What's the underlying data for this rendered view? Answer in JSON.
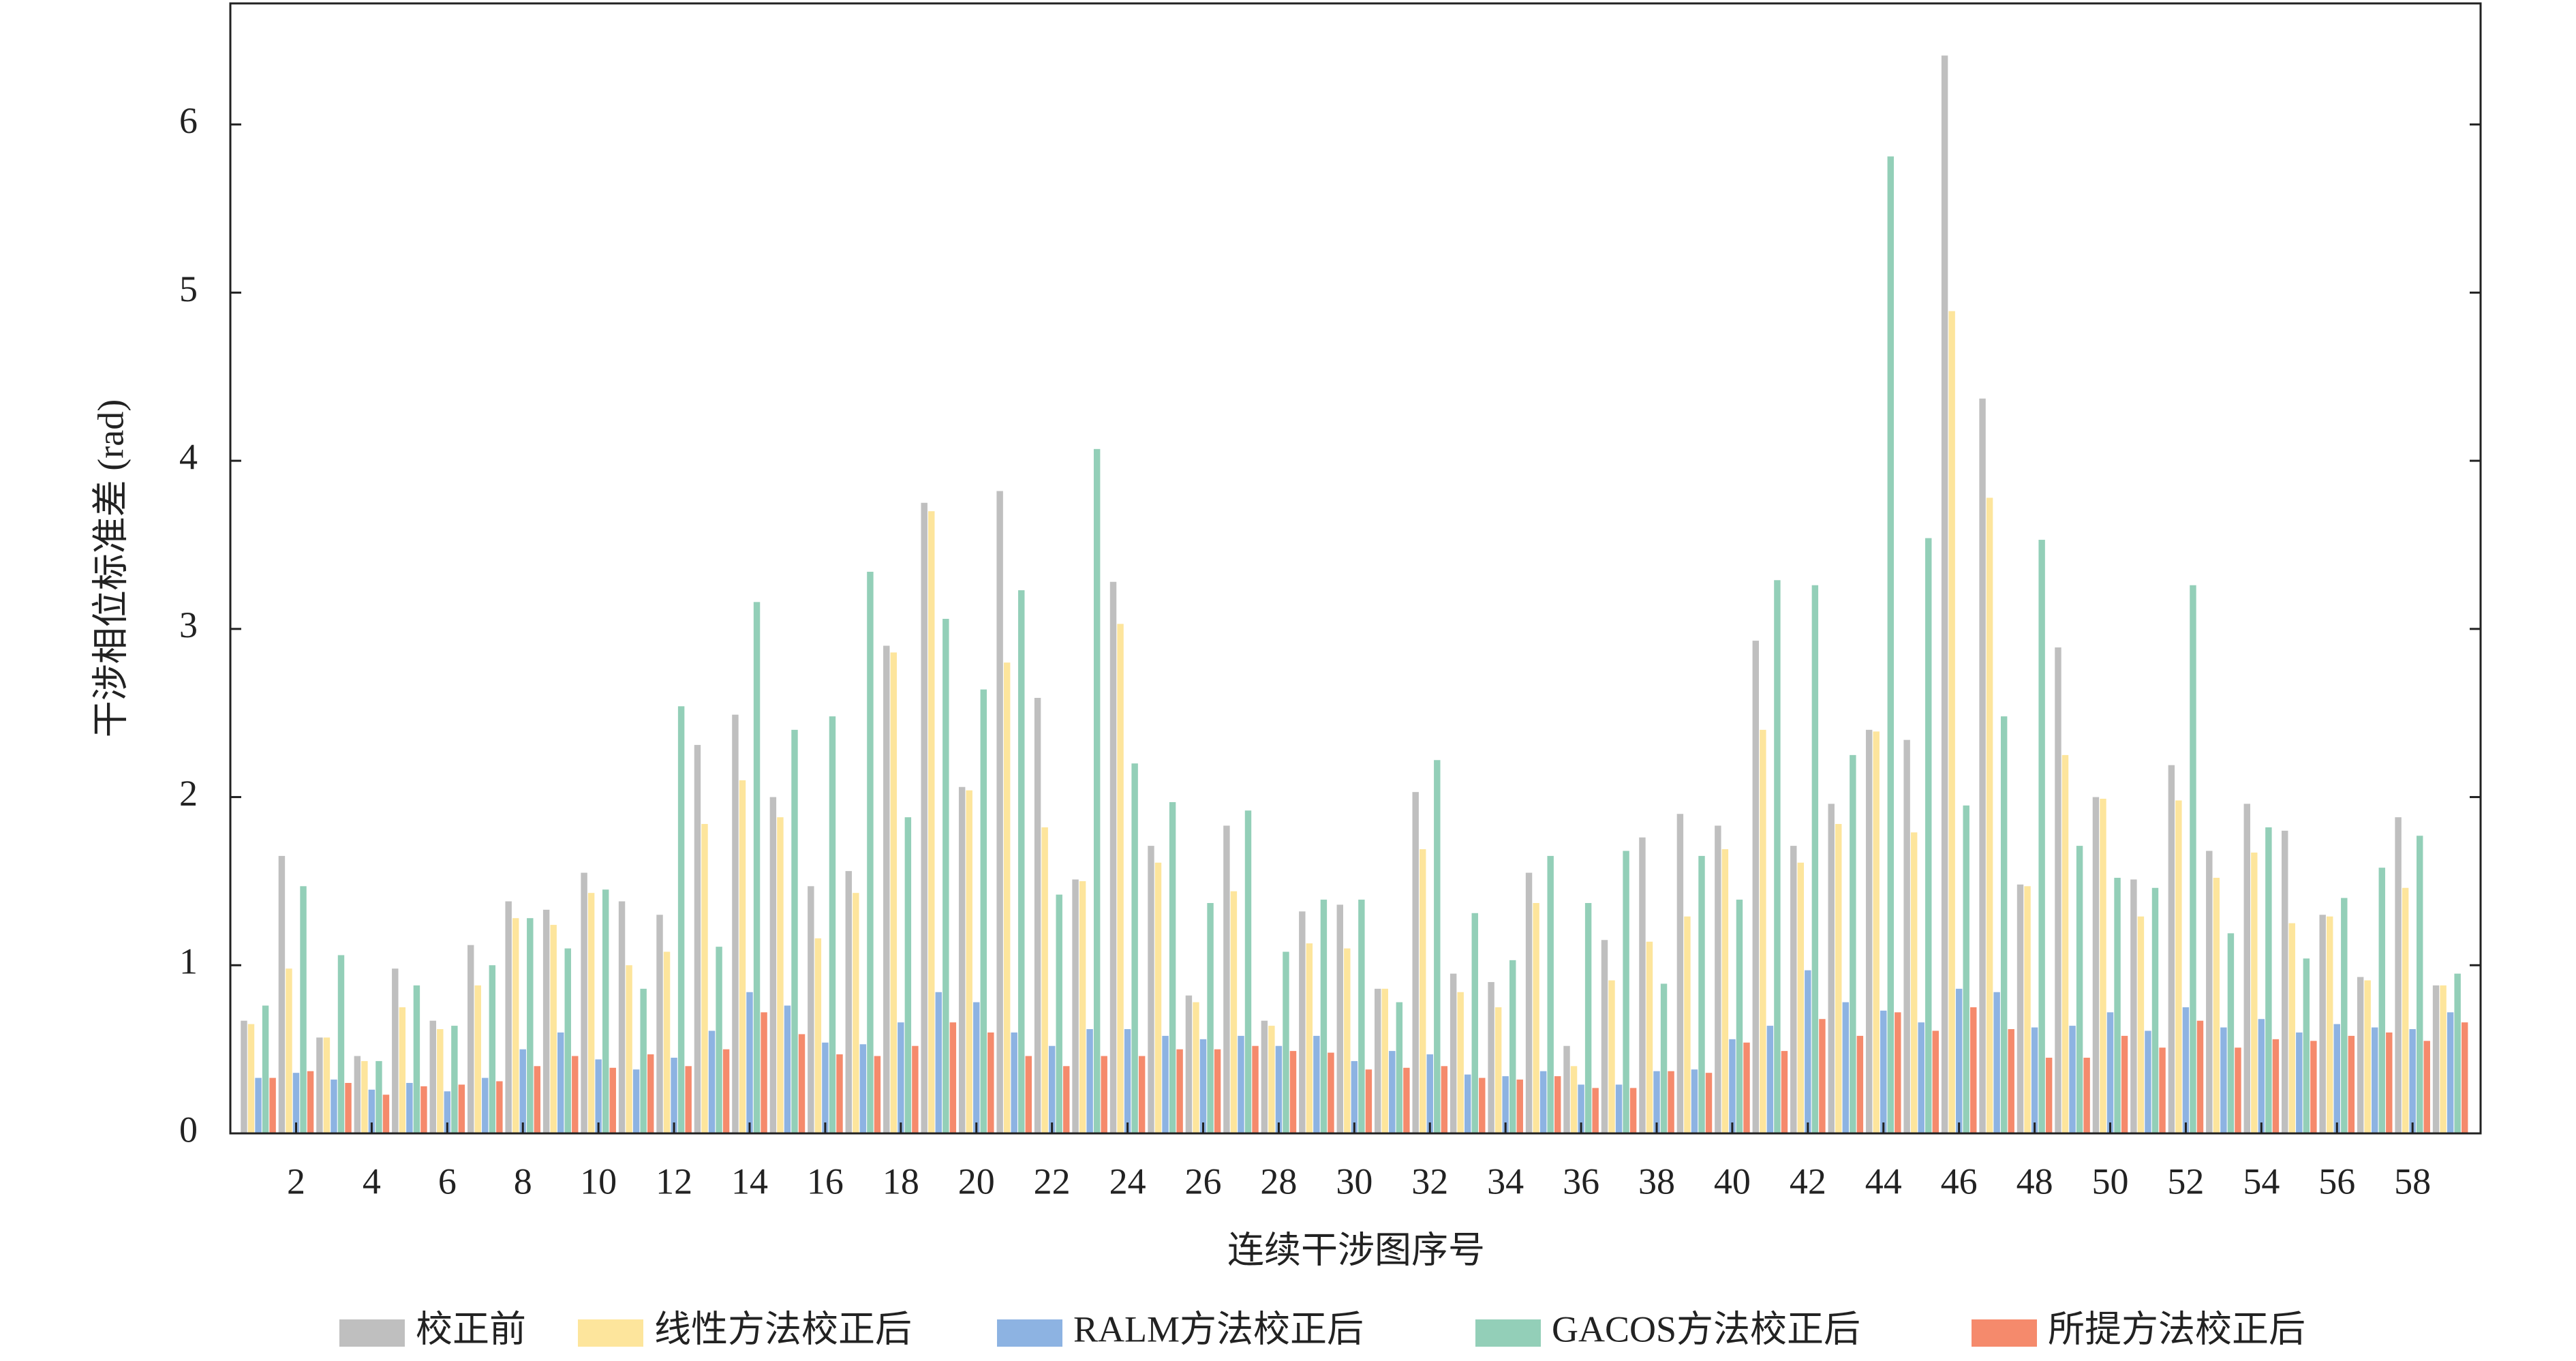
{
  "chart_data": {
    "type": "bar",
    "x_label": "连续干涉图序号",
    "y_label": "干涉相位标准差 (rad)",
    "x": [
      1,
      2,
      3,
      4,
      5,
      6,
      7,
      8,
      9,
      10,
      11,
      12,
      13,
      14,
      15,
      16,
      17,
      18,
      19,
      20,
      21,
      22,
      23,
      24,
      25,
      26,
      27,
      28,
      29,
      30,
      31,
      32,
      33,
      34,
      35,
      36,
      37,
      38,
      39,
      40,
      41,
      42,
      43,
      44,
      45,
      46,
      47,
      48,
      49,
      50,
      51,
      52,
      53,
      54,
      55,
      56,
      57,
      58,
      59
    ],
    "xlim": [
      0.26,
      59.8
    ],
    "xticks": [
      2,
      4,
      6,
      8,
      10,
      12,
      14,
      16,
      18,
      20,
      22,
      24,
      26,
      28,
      30,
      32,
      34,
      36,
      38,
      40,
      42,
      44,
      46,
      48,
      50,
      52,
      54,
      56,
      58
    ],
    "ylim": [
      0,
      6.72
    ],
    "yticks": [
      0,
      1,
      2,
      3,
      4,
      5,
      6
    ],
    "legend": "bottom",
    "series": [
      {
        "name": "校正前",
        "color": "#bfbfbf",
        "values": [
          0.67,
          1.65,
          0.57,
          0.46,
          0.98,
          0.67,
          1.12,
          1.38,
          1.33,
          1.55,
          1.38,
          1.3,
          2.31,
          2.49,
          2.0,
          1.47,
          1.56,
          2.9,
          3.75,
          2.06,
          3.82,
          2.59,
          1.51,
          3.28,
          1.71,
          0.82,
          1.83,
          0.67,
          1.32,
          1.36,
          0.86,
          2.03,
          0.95,
          0.9,
          1.55,
          0.52,
          1.15,
          1.76,
          1.9,
          1.83,
          2.93,
          1.71,
          1.96,
          2.4,
          2.34,
          6.41,
          4.37,
          1.48,
          2.89,
          2.0,
          1.51,
          2.19,
          1.68,
          1.96,
          1.8,
          1.3,
          0.93,
          1.88,
          0.88
        ]
      },
      {
        "name": "线性方法校正后",
        "color": "#fde59c",
        "values": [
          0.65,
          0.98,
          0.57,
          0.43,
          0.75,
          0.62,
          0.88,
          1.28,
          1.24,
          1.43,
          1.0,
          1.08,
          1.84,
          2.1,
          1.88,
          1.16,
          1.43,
          2.86,
          3.7,
          2.04,
          2.8,
          1.82,
          1.5,
          3.03,
          1.61,
          0.78,
          1.44,
          0.64,
          1.13,
          1.1,
          0.86,
          1.69,
          0.84,
          0.75,
          1.37,
          0.4,
          0.91,
          1.14,
          1.29,
          1.69,
          2.4,
          1.61,
          1.84,
          2.39,
          1.79,
          4.89,
          3.78,
          1.47,
          2.25,
          1.99,
          1.29,
          1.98,
          1.52,
          1.67,
          1.25,
          1.29,
          0.91,
          1.46,
          0.88
        ]
      },
      {
        "name": "RALM方法校正后",
        "color": "#8db3e2",
        "values": [
          0.33,
          0.36,
          0.32,
          0.26,
          0.3,
          0.25,
          0.33,
          0.5,
          0.6,
          0.44,
          0.38,
          0.45,
          0.61,
          0.84,
          0.76,
          0.54,
          0.53,
          0.66,
          0.84,
          0.78,
          0.6,
          0.52,
          0.62,
          0.62,
          0.58,
          0.56,
          0.58,
          0.52,
          0.58,
          0.43,
          0.49,
          0.47,
          0.35,
          0.34,
          0.37,
          0.29,
          0.29,
          0.37,
          0.38,
          0.56,
          0.64,
          0.97,
          0.78,
          0.73,
          0.66,
          0.86,
          0.84,
          0.63,
          0.64,
          0.72,
          0.61,
          0.75,
          0.63,
          0.68,
          0.6,
          0.65,
          0.63,
          0.62,
          0.72
        ]
      },
      {
        "name": "GACOS方法校正后",
        "color": "#93cfb8",
        "values": [
          0.76,
          1.47,
          1.06,
          0.43,
          0.88,
          0.64,
          1.0,
          1.28,
          1.1,
          1.45,
          0.86,
          2.54,
          1.11,
          3.16,
          2.4,
          2.48,
          3.34,
          1.88,
          3.06,
          2.64,
          3.23,
          1.42,
          4.07,
          2.2,
          1.97,
          1.37,
          1.92,
          1.08,
          1.39,
          1.39,
          0.78,
          2.22,
          1.31,
          1.03,
          1.65,
          1.37,
          1.68,
          0.89,
          1.65,
          1.39,
          3.29,
          3.26,
          2.25,
          5.81,
          3.54,
          1.95,
          2.48,
          3.53,
          1.71,
          1.52,
          1.46,
          3.26,
          1.19,
          1.82,
          1.04,
          1.4,
          1.58,
          1.77,
          0.95
        ]
      },
      {
        "name": "所提方法校正后",
        "color": "#f58a6c",
        "values": [
          0.33,
          0.37,
          0.3,
          0.23,
          0.28,
          0.29,
          0.31,
          0.4,
          0.46,
          0.39,
          0.47,
          0.4,
          0.5,
          0.72,
          0.59,
          0.47,
          0.46,
          0.52,
          0.66,
          0.6,
          0.46,
          0.4,
          0.46,
          0.46,
          0.5,
          0.5,
          0.52,
          0.49,
          0.48,
          0.38,
          0.39,
          0.4,
          0.33,
          0.32,
          0.34,
          0.27,
          0.27,
          0.37,
          0.36,
          0.54,
          0.49,
          0.68,
          0.58,
          0.72,
          0.61,
          0.75,
          0.62,
          0.45,
          0.45,
          0.58,
          0.51,
          0.67,
          0.51,
          0.56,
          0.55,
          0.58,
          0.6,
          0.55,
          0.66
        ]
      }
    ]
  }
}
